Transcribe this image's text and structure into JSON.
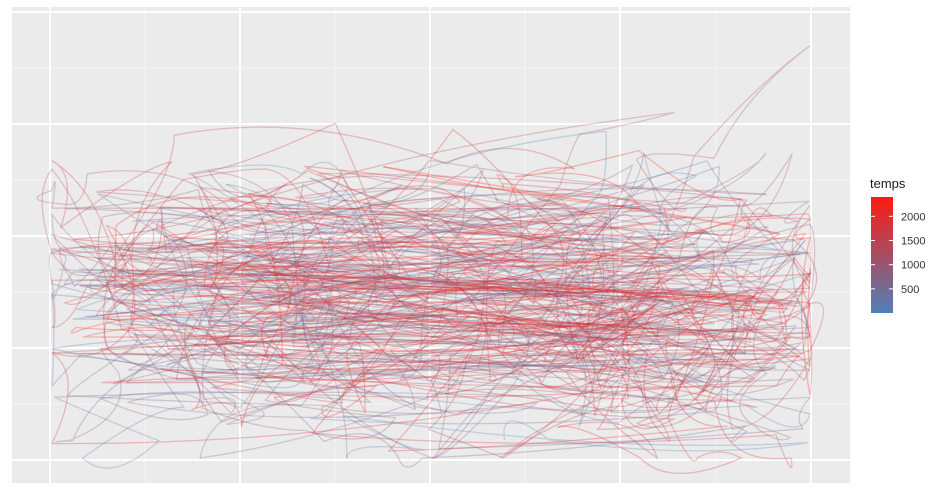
{
  "chart_data": {
    "type": "line",
    "title": "",
    "xlabel": "",
    "ylabel": "",
    "x_tick_labels": [],
    "y_tick_labels": [],
    "grid": true,
    "legend_position": "right",
    "legend": {
      "title": "temps",
      "type": "colorbar",
      "range": [
        0,
        2400
      ],
      "breaks": [
        500,
        1000,
        1500,
        2000
      ],
      "labels": [
        "500",
        "1000",
        "1500",
        "2000"
      ],
      "low_color": "#4f81b8",
      "high_color": "#ff1a10"
    },
    "colors": {
      "panel_background": "#ebebeb",
      "grid_major": "#ffffff",
      "grid_minor": "#f5f5f5",
      "path_opacity": 0.28
    },
    "trajectory": {
      "description_units": "unitless coordinates in [0,1], temps from 0 to 2400",
      "segments": 220,
      "seed": 7
    }
  }
}
